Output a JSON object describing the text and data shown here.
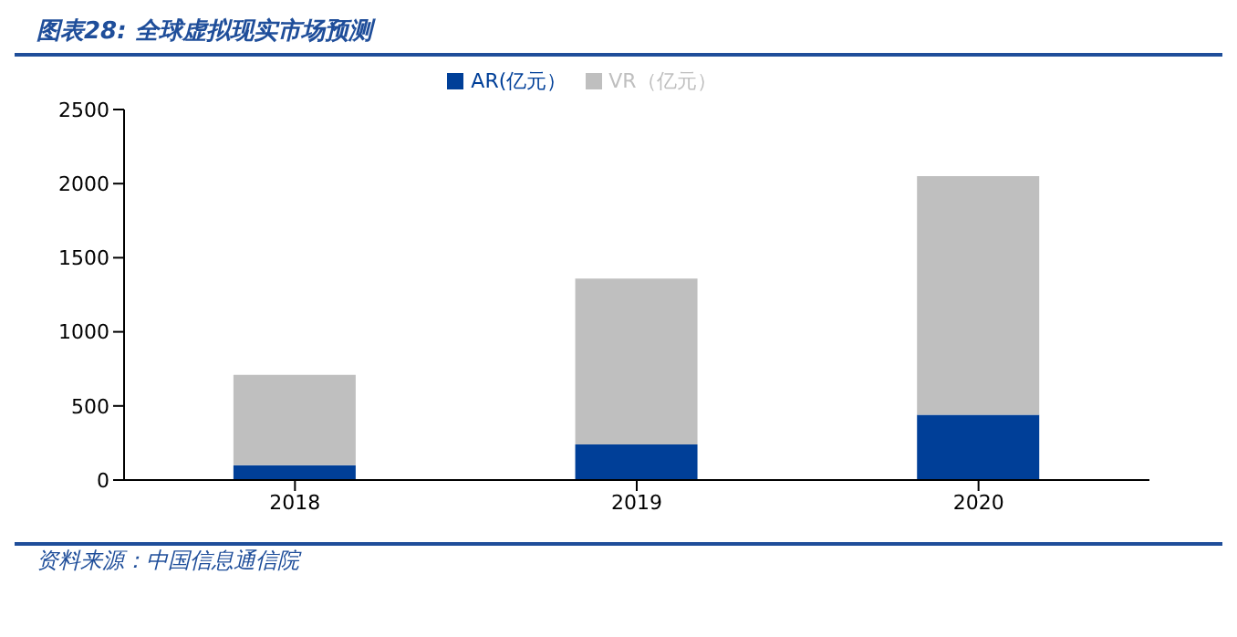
{
  "chart_data": {
    "type": "bar",
    "title": "图表28:  全球虚拟现实市场预测",
    "categories": [
      "2018",
      "2019",
      "2020"
    ],
    "series": [
      {
        "name": "AR(亿元）",
        "color": "#003f98",
        "values": [
          100,
          240,
          440
        ]
      },
      {
        "name": "VR（亿元）",
        "color": "#bfbfbf",
        "values": [
          610,
          1120,
          1610
        ]
      }
    ],
    "stacked": true,
    "ylim": [
      0,
      2500
    ],
    "yticks": [
      0,
      500,
      1000,
      1500,
      2000,
      2500
    ],
    "grid": false,
    "legend": "top",
    "annotations": [
      "资料来源：中国信息通信院"
    ]
  }
}
